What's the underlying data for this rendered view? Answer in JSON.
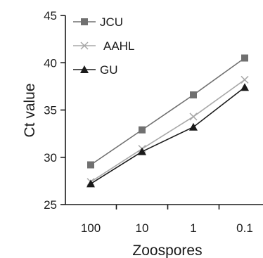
{
  "chart_data": {
    "type": "line",
    "xlabel": "Zoospores",
    "ylabel": "Ct value",
    "categories": [
      "100",
      "10",
      "1",
      "0.1"
    ],
    "ylim": [
      25,
      45
    ],
    "yticks": [
      "25",
      "30",
      "35",
      "40",
      "45"
    ],
    "grid": false,
    "legend_position": "top-left",
    "series": [
      {
        "name": "JCU",
        "values": [
          29.2,
          32.9,
          36.6,
          40.5
        ],
        "color": "#707070",
        "marker": "square"
      },
      {
        "name": "AAHL",
        "values": [
          27.4,
          30.9,
          34.3,
          38.2
        ],
        "color": "#a8a8a8",
        "marker": "x"
      },
      {
        "name": "GU",
        "values": [
          27.2,
          30.6,
          33.2,
          37.4
        ],
        "color": "#1a1a1a",
        "marker": "triangle"
      }
    ]
  }
}
